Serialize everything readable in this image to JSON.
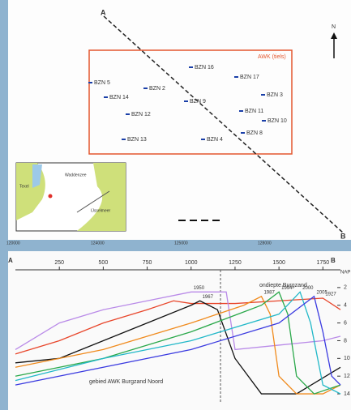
{
  "map": {
    "area_label": "AWK (tiels)",
    "north": "N",
    "point_a": "A",
    "point_b": "B",
    "points": [
      "BZN 16",
      "BZN 17",
      "BZN 5",
      "BZN 2",
      "BZN 3",
      "BZN 14",
      "BZN 9",
      "BZN 11",
      "BZN 12",
      "BZN 10",
      "BZN 8",
      "BZN 13",
      "BZN 4"
    ],
    "inset_labels": [
      "Texel",
      "Waddenzee",
      "IJsselmeer"
    ],
    "coordinates": [
      "120000",
      "124000",
      "125000",
      "128000"
    ]
  },
  "chart_data": {
    "type": "line",
    "left_label": "A",
    "right_label": "B",
    "y_label": "NAP",
    "annotations": [
      "ondiepte Burgzand",
      "gebied AWK Burgzand Noord"
    ],
    "xlim": [
      0,
      1850
    ],
    "xticks": [
      250,
      500,
      750,
      1000,
      1250,
      1500,
      1750
    ],
    "ylim": [
      0,
      15
    ],
    "yticks": [
      2,
      4,
      6,
      8,
      10,
      12,
      14
    ],
    "y_inverted": true,
    "series": [
      {
        "name": "1927",
        "color": "#e8452a",
        "x": [
          0,
          250,
          500,
          750,
          900,
          1000,
          1250,
          1500,
          1750,
          1850
        ],
        "values": [
          9.5,
          8,
          6,
          4.5,
          3.5,
          3.8,
          3.8,
          3.5,
          3.2,
          4.5
        ]
      },
      {
        "name": "1950",
        "color": "#b98ae8",
        "x": [
          0,
          250,
          500,
          750,
          1000,
          1200,
          1250,
          1500,
          1750,
          1850
        ],
        "values": [
          9,
          6,
          4.5,
          3.5,
          2.5,
          2.5,
          9,
          8.5,
          8,
          7.5
        ]
      },
      {
        "name": "1967",
        "color": "#111111",
        "x": [
          0,
          250,
          500,
          750,
          1000,
          1050,
          1150,
          1250,
          1400,
          1600,
          1850
        ],
        "values": [
          10.5,
          10,
          8,
          6,
          4,
          3.5,
          4.5,
          10,
          14,
          14,
          11
        ]
      },
      {
        "name": "1987",
        "color": "#f08a1c",
        "x": [
          0,
          500,
          1000,
          1300,
          1400,
          1450,
          1500,
          1600,
          1750,
          1850
        ],
        "values": [
          11,
          9,
          6,
          4,
          3,
          5,
          12,
          14,
          14,
          13
        ]
      },
      {
        "name": "1994",
        "color": "#2aa84a",
        "x": [
          0,
          500,
          1000,
          1400,
          1500,
          1550,
          1600,
          1700,
          1850
        ],
        "values": [
          12,
          10,
          7,
          4,
          2.5,
          5,
          12,
          14,
          13
        ]
      },
      {
        "name": "2000",
        "color": "#22b8c8",
        "x": [
          0,
          500,
          1000,
          1500,
          1620,
          1680,
          1750,
          1850
        ],
        "values": [
          12.5,
          10,
          8,
          5,
          2.5,
          6,
          13,
          14
        ]
      },
      {
        "name": "2005",
        "color": "#3a3ae0",
        "x": [
          0,
          500,
          1000,
          1500,
          1700,
          1750,
          1800,
          1850
        ],
        "values": [
          13,
          11,
          9,
          6,
          3,
          7,
          12,
          13
        ]
      }
    ]
  }
}
